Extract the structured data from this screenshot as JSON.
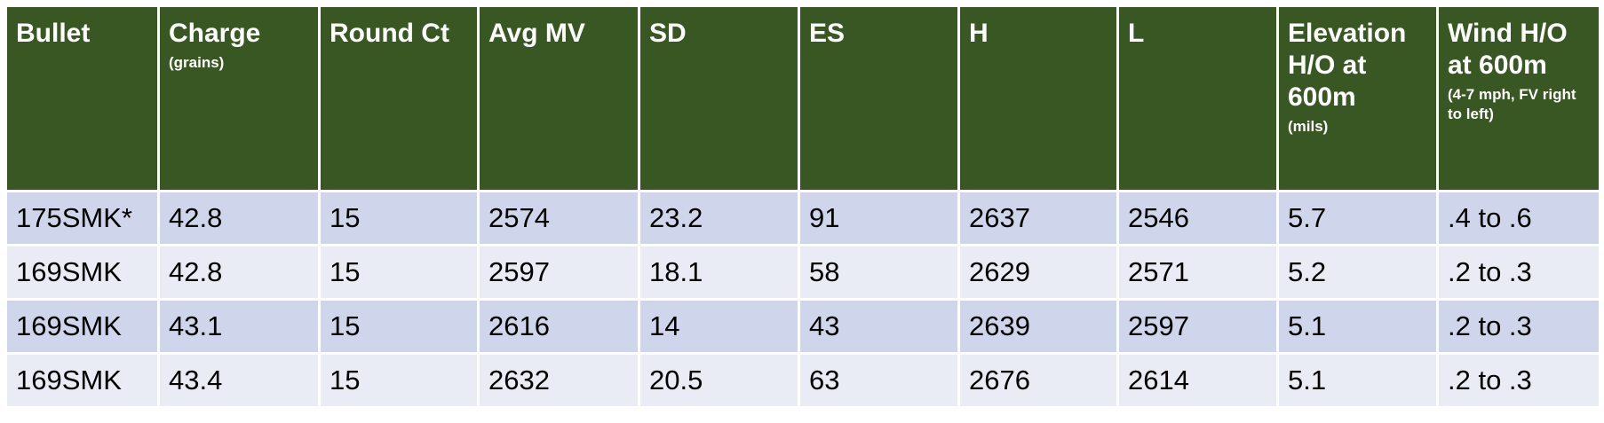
{
  "table": {
    "columns": [
      {
        "label": "Bullet"
      },
      {
        "label": "Charge",
        "sublabel": "(grains)"
      },
      {
        "label": "Round Ct"
      },
      {
        "label": "Avg MV"
      },
      {
        "label": "SD"
      },
      {
        "label": "ES"
      },
      {
        "label": "H"
      },
      {
        "label": "L"
      },
      {
        "label": "Elevation H/O at 600m",
        "sublabel": "(mils)"
      },
      {
        "label": "Wind H/O at 600m",
        "sublabel": "(4-7 mph, FV right to left)"
      }
    ],
    "rows": [
      [
        "175SMK*",
        "42.8",
        "15",
        "2574",
        "23.2",
        "91",
        "2637",
        "2546",
        "5.7",
        ".4 to .6"
      ],
      [
        "169SMK",
        "42.8",
        "15",
        "2597",
        "18.1",
        "58",
        "2629",
        "2571",
        "5.2",
        ".2 to .3"
      ],
      [
        "169SMK",
        "43.1",
        "15",
        "2616",
        "14",
        "43",
        "2639",
        "2597",
        "5.1",
        ".2 to .3"
      ],
      [
        "169SMK",
        "43.4",
        "15",
        "2632",
        "20.5",
        "63",
        "2676",
        "2614",
        "5.1",
        ".2 to .3"
      ]
    ]
  }
}
